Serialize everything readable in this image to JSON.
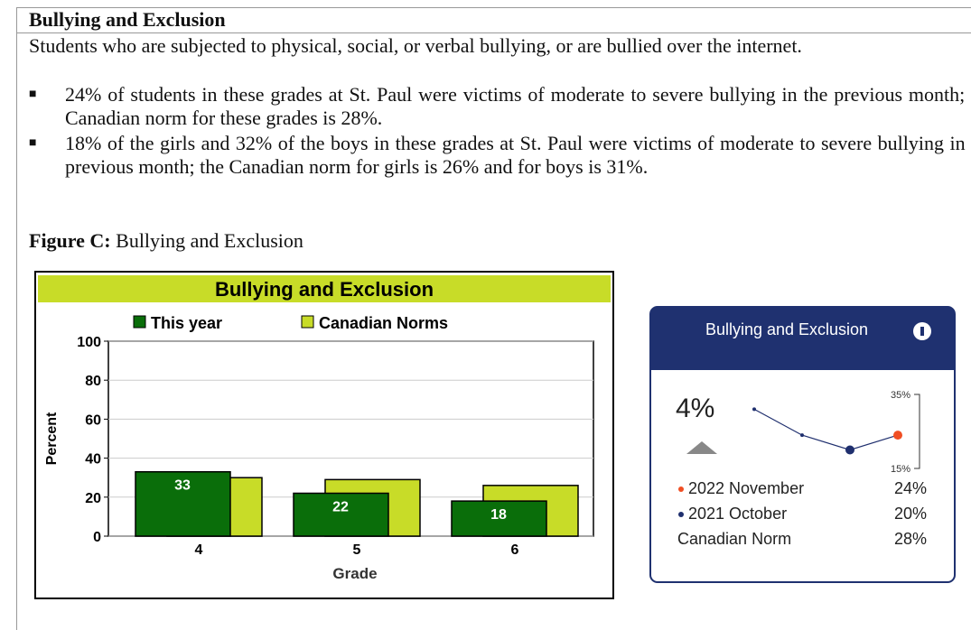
{
  "heading": "Bullying and Exclusion",
  "intro": "Students who are subjected to physical, social, or verbal bullying, or are bullied over the internet.",
  "bullets": [
    "24% of students in these grades at St. Paul were victims of moderate to severe bullying in the previous month; the Canadian norm for these grades is 28%.",
    "18% of the girls and 32% of the boys in these grades at St. Paul were victims of moderate to severe bullying in the previous month; the Canadian norm for girls is 26% and for boys is 31%."
  ],
  "figure_label": "Figure C:",
  "figure_title": "Bullying and Exclusion",
  "chart_data": {
    "type": "bar",
    "title": "Bullying and Exclusion",
    "ylabel": "Percent",
    "xlabel": "Grade",
    "categories": [
      "4",
      "5",
      "6"
    ],
    "series": [
      {
        "name": "This year",
        "color": "#0a6e0a",
        "values": [
          33,
          22,
          18
        ]
      },
      {
        "name": "Canadian Norms",
        "color": "#c8dc28",
        "values": [
          30,
          29,
          26
        ]
      }
    ],
    "ylim": [
      0,
      100
    ],
    "yticks": [
      0,
      20,
      40,
      60,
      80,
      100
    ]
  },
  "widget": {
    "title": "Bullying and Exclusion",
    "change": "4%",
    "trend": {
      "type": "line",
      "values": [
        31,
        24,
        20,
        24
      ],
      "ylim": [
        15,
        35
      ],
      "yticks": [
        {
          "value": 15,
          "label": "15%"
        },
        {
          "value": 35,
          "label": "35%"
        }
      ]
    },
    "legend": [
      {
        "label": "2022 November",
        "value": "24%",
        "color": "#f04e23"
      },
      {
        "label": "2021 October",
        "value": "20%",
        "color": "#1f2f6e"
      },
      {
        "label": "Canadian Norm",
        "value": "28%"
      }
    ]
  }
}
